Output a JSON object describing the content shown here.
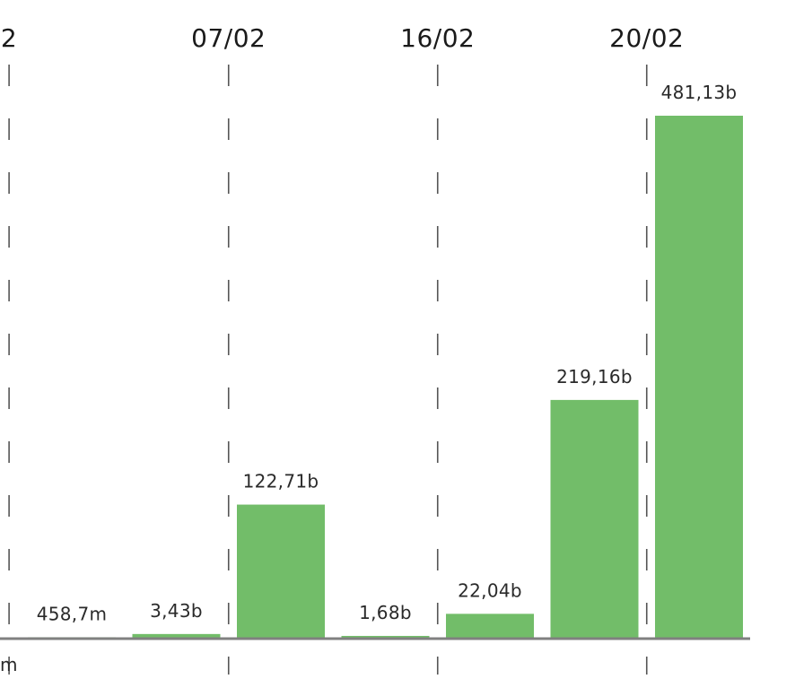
{
  "chart_data": {
    "type": "bar",
    "bar_color": "#72bd69",
    "date_markers": [
      {
        "label": "2",
        "slot": -0.6
      },
      {
        "label": "07/02",
        "slot": 1.5
      },
      {
        "label": "16/02",
        "slot": 3.5
      },
      {
        "label": "20/02",
        "slot": 5.5
      }
    ],
    "series": [
      {
        "values": [
          0.4587,
          3.43,
          122.71,
          1.68,
          22.04,
          219.16,
          481.13
        ],
        "value_labels": [
          "458,7m",
          "3,43b",
          "122,71b",
          "1,68b",
          "22,04b",
          "219,16b",
          "481,13b"
        ]
      }
    ],
    "partial_labels": [
      "m"
    ]
  }
}
